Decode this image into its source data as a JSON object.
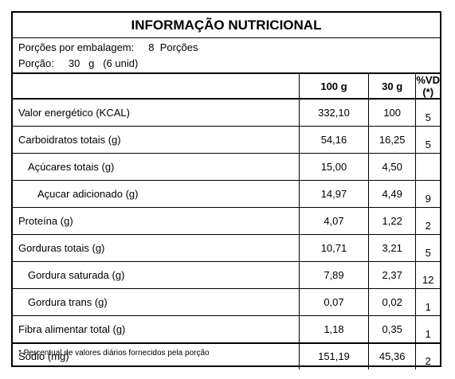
{
  "title": "INFORMAÇÃO NUTRICIONAL",
  "servings_per_package": "Porções por embalagem:     8  Porções",
  "serving_size": "Porção:     30   g   (6 unid)",
  "columns": [
    "",
    "100 g",
    "30 g",
    "%VD (*)"
  ],
  "rows": [
    {
      "name": "Valor energético (KCAL)",
      "v100": "332,10",
      "v30": "100",
      "vd": "5",
      "level": 0
    },
    {
      "name": "Carboidratos totais (g)",
      "v100": "54,16",
      "v30": "16,25",
      "vd": "5",
      "level": 0
    },
    {
      "name": "Açúcares totais (g)",
      "v100": "15,00",
      "v30": "4,50",
      "vd": "",
      "level": 1
    },
    {
      "name": "Açucar adicionado (g)",
      "v100": "14,97",
      "v30": "4,49",
      "vd": "9",
      "level": 2
    },
    {
      "name": "Proteína (g)",
      "v100": "4,07",
      "v30": "1,22",
      "vd": "2",
      "level": 0
    },
    {
      "name": "Gorduras totais (g)",
      "v100": "10,71",
      "v30": "3,21",
      "vd": "5",
      "level": 0
    },
    {
      "name": "Gordura saturada (g)",
      "v100": "7,89",
      "v30": "2,37",
      "vd": "12",
      "level": 1
    },
    {
      "name": "Gordura trans (g)",
      "v100": "0,07",
      "v30": "0,02",
      "vd": "1",
      "level": 1
    },
    {
      "name": "Fibra alimentar total (g)",
      "v100": "1,18",
      "v30": "0,35",
      "vd": "1",
      "level": 0
    },
    {
      "name": "Sódio (mg)",
      "v100": "151,19",
      "v30": "45,36",
      "vd": "2",
      "level": 0
    }
  ],
  "footnote": "* Percentual de valores diários fornecidos pela porção"
}
